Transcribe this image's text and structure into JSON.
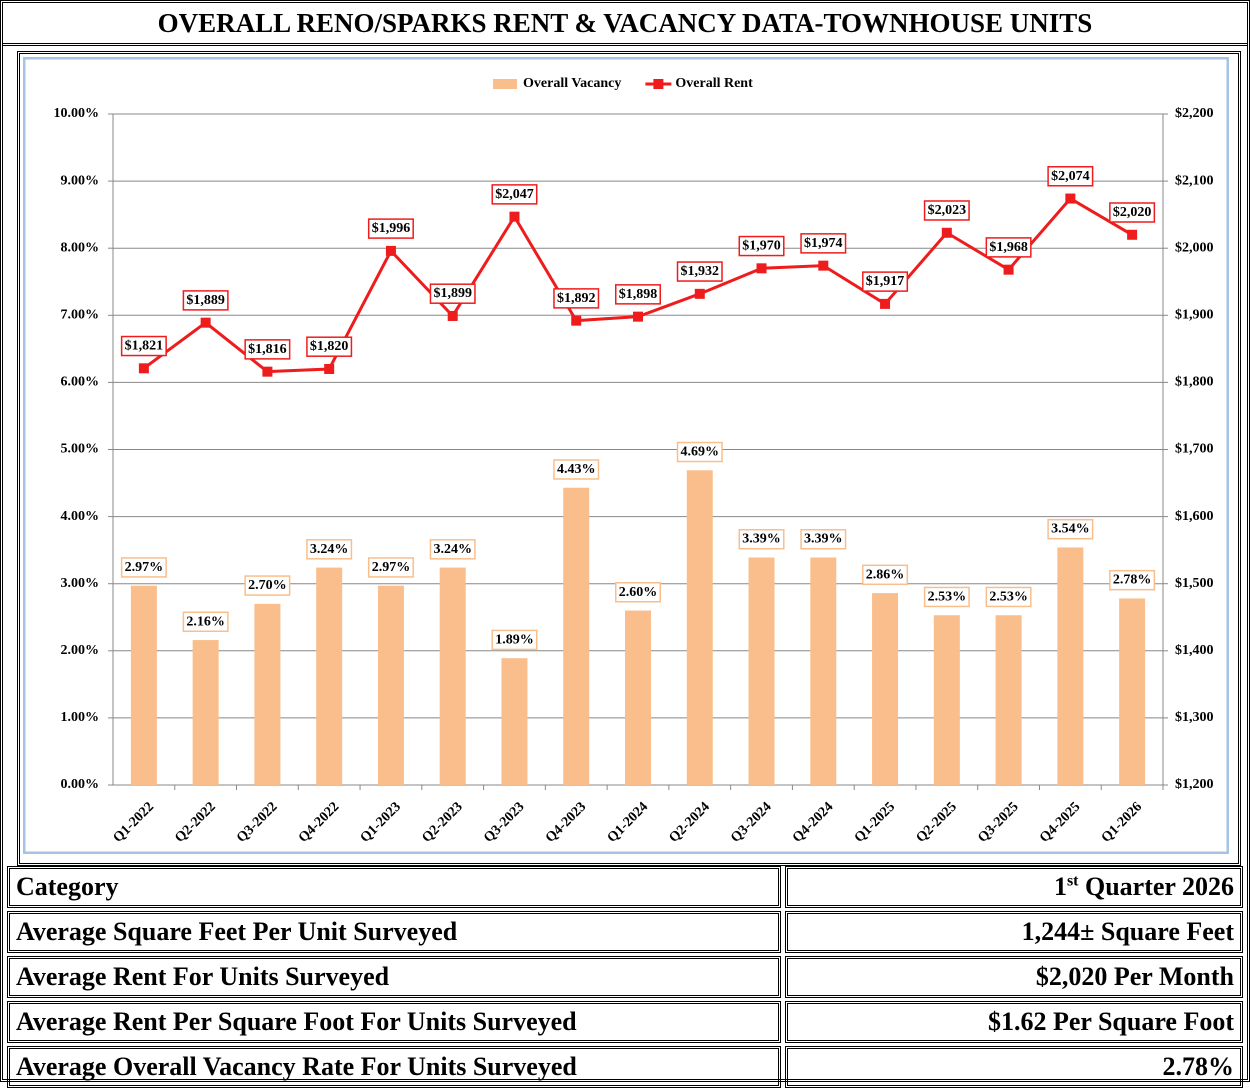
{
  "title": "OVERALL RENO/SPARKS RENT & VACANCY DATA-TOWNHOUSE UNITS",
  "chart_data": {
    "type": "bar-line",
    "categories": [
      "Q1-2022",
      "Q2-2022",
      "Q3-2022",
      "Q4-2022",
      "Q1-2023",
      "Q2-2023",
      "Q3-2023",
      "Q4-2023",
      "Q1-2024",
      "Q2-2024",
      "Q3-2024",
      "Q4-2024",
      "Q1-2025",
      "Q2-2025",
      "Q3-2025",
      "Q4-2025",
      "Q1-2026"
    ],
    "series": [
      {
        "name": "Overall Vacancy",
        "type": "bar",
        "color": "#f9be8c",
        "label_border": "#f9be8c",
        "values": [
          2.97,
          2.16,
          2.7,
          3.24,
          2.97,
          3.24,
          1.89,
          4.43,
          2.6,
          4.69,
          3.39,
          3.39,
          2.86,
          2.53,
          2.53,
          3.54,
          2.78
        ],
        "value_labels": [
          "2.97%",
          "2.16%",
          "2.70%",
          "3.24%",
          "2.97%",
          "3.24%",
          "1.89%",
          "4.43%",
          "2.60%",
          "4.69%",
          "3.39%",
          "3.39%",
          "2.86%",
          "2.53%",
          "2.53%",
          "3.54%",
          "2.78%"
        ]
      },
      {
        "name": "Overall Rent",
        "type": "line",
        "axis": "y2",
        "color": "#ee1c1c",
        "label_border": "#ee1c1c",
        "values": [
          1821,
          1889,
          1816,
          1820,
          1996,
          1899,
          2047,
          1892,
          1898,
          1932,
          1970,
          1974,
          1917,
          2023,
          1968,
          2074,
          2020
        ],
        "value_labels": [
          "$1,821",
          "$1,889",
          "$1,816",
          "$1,820",
          "$1,996",
          "$1,899",
          "$2,047",
          "$1,892",
          "$1,898",
          "$1,932",
          "$1,970",
          "$1,974",
          "$1,917",
          "$2,023",
          "$1,968",
          "$2,074",
          "$2,020"
        ]
      }
    ],
    "ylim": [
      0,
      10
    ],
    "yticks": [
      {
        "value": 0,
        "label": "0.00%"
      },
      {
        "value": 1,
        "label": "1.00%"
      },
      {
        "value": 2,
        "label": "2.00%"
      },
      {
        "value": 3,
        "label": "3.00%"
      },
      {
        "value": 4,
        "label": "4.00%"
      },
      {
        "value": 5,
        "label": "5.00%"
      },
      {
        "value": 6,
        "label": "6.00%"
      },
      {
        "value": 7,
        "label": "7.00%"
      },
      {
        "value": 8,
        "label": "8.00%"
      },
      {
        "value": 9,
        "label": "9.00%"
      },
      {
        "value": 10,
        "label": "10.00%"
      }
    ],
    "y2lim": [
      1200,
      2200
    ],
    "y2ticks": [
      {
        "value": 1200,
        "label": "$1,200"
      },
      {
        "value": 1300,
        "label": "$1,300"
      },
      {
        "value": 1400,
        "label": "$1,400"
      },
      {
        "value": 1500,
        "label": "$1,500"
      },
      {
        "value": 1600,
        "label": "$1,600"
      },
      {
        "value": 1700,
        "label": "$1,700"
      },
      {
        "value": 1800,
        "label": "$1,800"
      },
      {
        "value": 1900,
        "label": "$1,900"
      },
      {
        "value": 2000,
        "label": "$2,000"
      },
      {
        "value": 2100,
        "label": "$2,100"
      },
      {
        "value": 2200,
        "label": "$2,200"
      }
    ],
    "grid": true,
    "legend": "top"
  },
  "table": {
    "header": [
      "Category",
      {
        "ordinal": "1",
        "suffix": "st",
        "text": "Quarter 2026"
      }
    ],
    "rows": [
      [
        "Average Square Feet Per Unit Surveyed",
        "1,244± Square Feet"
      ],
      [
        "Average Rent For Units Surveyed",
        "$2,020 Per Month"
      ],
      [
        "Average Rent Per Square Foot For Units Surveyed",
        "$1.62 Per Square Foot"
      ],
      [
        "Average Overall Vacancy Rate For Units Surveyed",
        "2.78%"
      ]
    ]
  }
}
